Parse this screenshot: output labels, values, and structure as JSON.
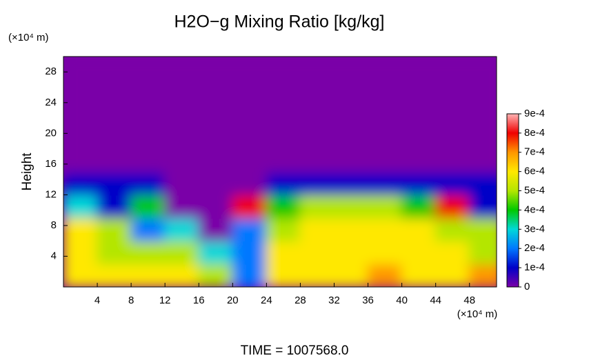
{
  "chart_data": {
    "type": "heatmap",
    "title": "H2O−g Mixing Ratio [kg/kg]",
    "y_label": "Height",
    "y_unit_label": "(×10⁴ m)",
    "x_unit_label": "(×10⁴ m)",
    "footer": "TIME = 1007568.0",
    "xlim": [
      0,
      51.2
    ],
    "ylim": [
      0,
      30
    ],
    "xticks": [
      4,
      8,
      12,
      16,
      20,
      24,
      28,
      32,
      36,
      40,
      44,
      48
    ],
    "yticks": [
      4,
      8,
      12,
      16,
      20,
      24,
      28
    ],
    "x": [
      2,
      6,
      10,
      14,
      18,
      22,
      26,
      30,
      34,
      38,
      42,
      46,
      50
    ],
    "y": [
      1.5,
      4.5,
      7.5,
      10.5,
      13.5,
      16.5,
      19.5,
      22.5,
      25.5,
      28.5
    ],
    "z": [
      [
        0.0006,
        0.0006,
        0.0006,
        0.0006,
        0.0005,
        0.0002,
        0.0006,
        0.0006,
        0.0006,
        0.0007,
        0.0006,
        0.0006,
        0.0007
      ],
      [
        0.0006,
        0.0005,
        0.0005,
        0.0005,
        0.0003,
        0.0002,
        0.0006,
        0.0006,
        0.0006,
        0.0006,
        0.0006,
        0.0006,
        0.0005
      ],
      [
        0.0006,
        0.0005,
        0.0002,
        0.0003,
        0,
        0.0002,
        0.0005,
        0.0006,
        0.0006,
        0.0006,
        0.0006,
        0.0005,
        0.0005
      ],
      [
        0.0003,
        0.0001,
        0.0004,
        0,
        0,
        0.0008,
        0.0004,
        0.0005,
        0.0005,
        0.0005,
        0.0004,
        0.0008,
        0.0001
      ],
      [
        0.0001,
        0.0001,
        0.0001,
        0,
        0,
        0,
        0.0001,
        0.0001,
        0.0001,
        0.0001,
        0.0001,
        0.0001,
        0.0001
      ],
      [
        0,
        0,
        0,
        0,
        0,
        0,
        0,
        0,
        0,
        0,
        0,
        0,
        0
      ],
      [
        0,
        0,
        0,
        0,
        0,
        0,
        0,
        0,
        0,
        0,
        0,
        0,
        0
      ],
      [
        0,
        0,
        0,
        0,
        0,
        0,
        0,
        0,
        0,
        0,
        0,
        0,
        0
      ],
      [
        0,
        0,
        0,
        0,
        0,
        0,
        0,
        0,
        0,
        0,
        0,
        0,
        0
      ],
      [
        0,
        0,
        0,
        0,
        0,
        0,
        0,
        0,
        0,
        0,
        0,
        0,
        0
      ]
    ],
    "clim": [
      0,
      0.0009
    ],
    "cticks": [
      0,
      {
        "value": 0.0001,
        "label": "1e-4"
      },
      {
        "value": 0.0002,
        "label": "2e-4"
      },
      {
        "value": 0.0003,
        "label": "3e-4"
      },
      {
        "value": 0.0004,
        "label": "4e-4"
      },
      {
        "value": 0.0005,
        "label": "5e-4"
      },
      {
        "value": 0.0006,
        "label": "6e-4"
      },
      {
        "value": 0.0007,
        "label": "7e-4"
      },
      {
        "value": 0.0008,
        "label": "8e-4"
      },
      {
        "value": 0.0009,
        "label": "9e-4"
      }
    ],
    "colorscale": [
      "#7a00a8",
      "#0000c8",
      "#0078ff",
      "#00d8d8",
      "#00c800",
      "#b4e600",
      "#ffe800",
      "#ff9600",
      "#f00000",
      "#ffb4b4"
    ]
  }
}
